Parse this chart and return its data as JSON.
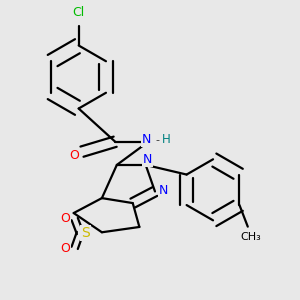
{
  "background_color": "#e8e8e8",
  "atom_colors": {
    "Cl": "#00bb00",
    "O": "#ff0000",
    "N": "#0000ff",
    "S": "#ccbb00",
    "H": "#008080",
    "C": "#000000"
  },
  "font_size": 9,
  "line_width": 1.6,
  "double_sep": 0.018
}
